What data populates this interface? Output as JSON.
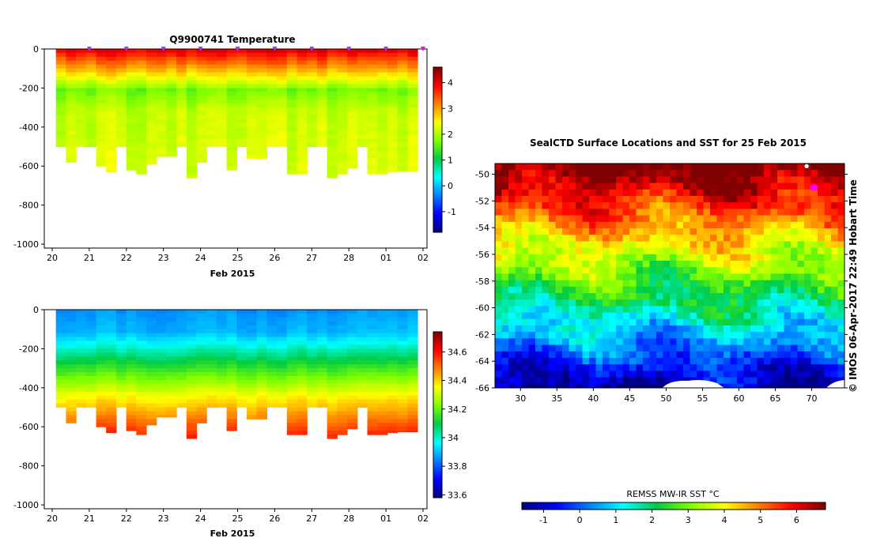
{
  "colormap": [
    "#00007f",
    "#0000ff",
    "#007fff",
    "#00ffff",
    "#00cc44",
    "#7fff00",
    "#ffff00",
    "#ff7f00",
    "#ff0000",
    "#7f0000"
  ],
  "chart_data": [
    {
      "id": "temperature",
      "type": "heatmap",
      "title": "Q9900741  Temperature",
      "xlabel": "Feb 2015",
      "ylabel": "",
      "x_tick_labels": [
        "20",
        "21",
        "22",
        "23",
        "24",
        "25",
        "26",
        "27",
        "28",
        "01",
        "02"
      ],
      "y_ticks": [
        0,
        -200,
        -400,
        -600,
        -800,
        -1000
      ],
      "xlim": [
        0,
        10
      ],
      "ylim": [
        -1020,
        0
      ],
      "colorbar": {
        "min": -1.8,
        "max": 4.6,
        "ticks": [
          4,
          3,
          2,
          1,
          0,
          -1
        ]
      },
      "profile_depths": [
        -500,
        -580,
        -500,
        -500,
        -600,
        -630,
        -500,
        -620,
        -640,
        -590,
        -550,
        -550,
        -500,
        -660,
        -580,
        -500,
        -500,
        -620,
        -500,
        -560,
        -560,
        -500,
        -500,
        -640,
        -640,
        -500,
        -500,
        -660,
        -640,
        -610,
        -500,
        -640,
        -640,
        -630,
        -625,
        -625
      ],
      "surface_markers_days": [
        1,
        2,
        3,
        4,
        5,
        6,
        7,
        8,
        9,
        10
      ]
    },
    {
      "id": "salinity",
      "type": "heatmap",
      "title": "",
      "xlabel": "Feb 2015",
      "ylabel": "",
      "x_tick_labels": [
        "20",
        "21",
        "22",
        "23",
        "24",
        "25",
        "26",
        "27",
        "28",
        "01",
        "02"
      ],
      "y_ticks": [
        0,
        -200,
        -400,
        -600,
        -800,
        -1000
      ],
      "xlim": [
        0,
        10
      ],
      "ylim": [
        -1020,
        0
      ],
      "colorbar": {
        "min": 33.58,
        "max": 34.74,
        "ticks": [
          34.6,
          34.4,
          34.2,
          34,
          33.8,
          33.6
        ]
      },
      "profile_depths": [
        -500,
        -580,
        -500,
        -500,
        -600,
        -630,
        -500,
        -620,
        -640,
        -590,
        -550,
        -550,
        -500,
        -660,
        -580,
        -500,
        -500,
        -620,
        -500,
        -560,
        -560,
        -500,
        -500,
        -640,
        -640,
        -500,
        -500,
        -660,
        -640,
        -610,
        -500,
        -640,
        -640,
        -630,
        -625,
        -625
      ]
    },
    {
      "id": "sst-map",
      "type": "heatmap",
      "title": "SealCTD Surface Locations and SST for 25 Feb 2015",
      "xlabel": "",
      "ylabel": "",
      "x_ticks": [
        30,
        35,
        40,
        45,
        50,
        55,
        60,
        65,
        70
      ],
      "y_ticks": [
        -50,
        -52,
        -54,
        -56,
        -58,
        -60,
        -62,
        -64,
        -66
      ],
      "xlim": [
        26.5,
        74.5
      ],
      "ylim": [
        -66,
        -49.2
      ],
      "colorbar": {
        "label": "REMSS MW-IR SST °C",
        "min": -1.6,
        "max": 6.8,
        "ticks": [
          -1,
          0,
          1,
          2,
          3,
          4,
          5,
          6
        ]
      },
      "surface_location": {
        "lon": 70.3,
        "lat": -51.0
      }
    }
  ],
  "credit": "© IMOS 06-Apr-2017 22:49 Hobart Time"
}
